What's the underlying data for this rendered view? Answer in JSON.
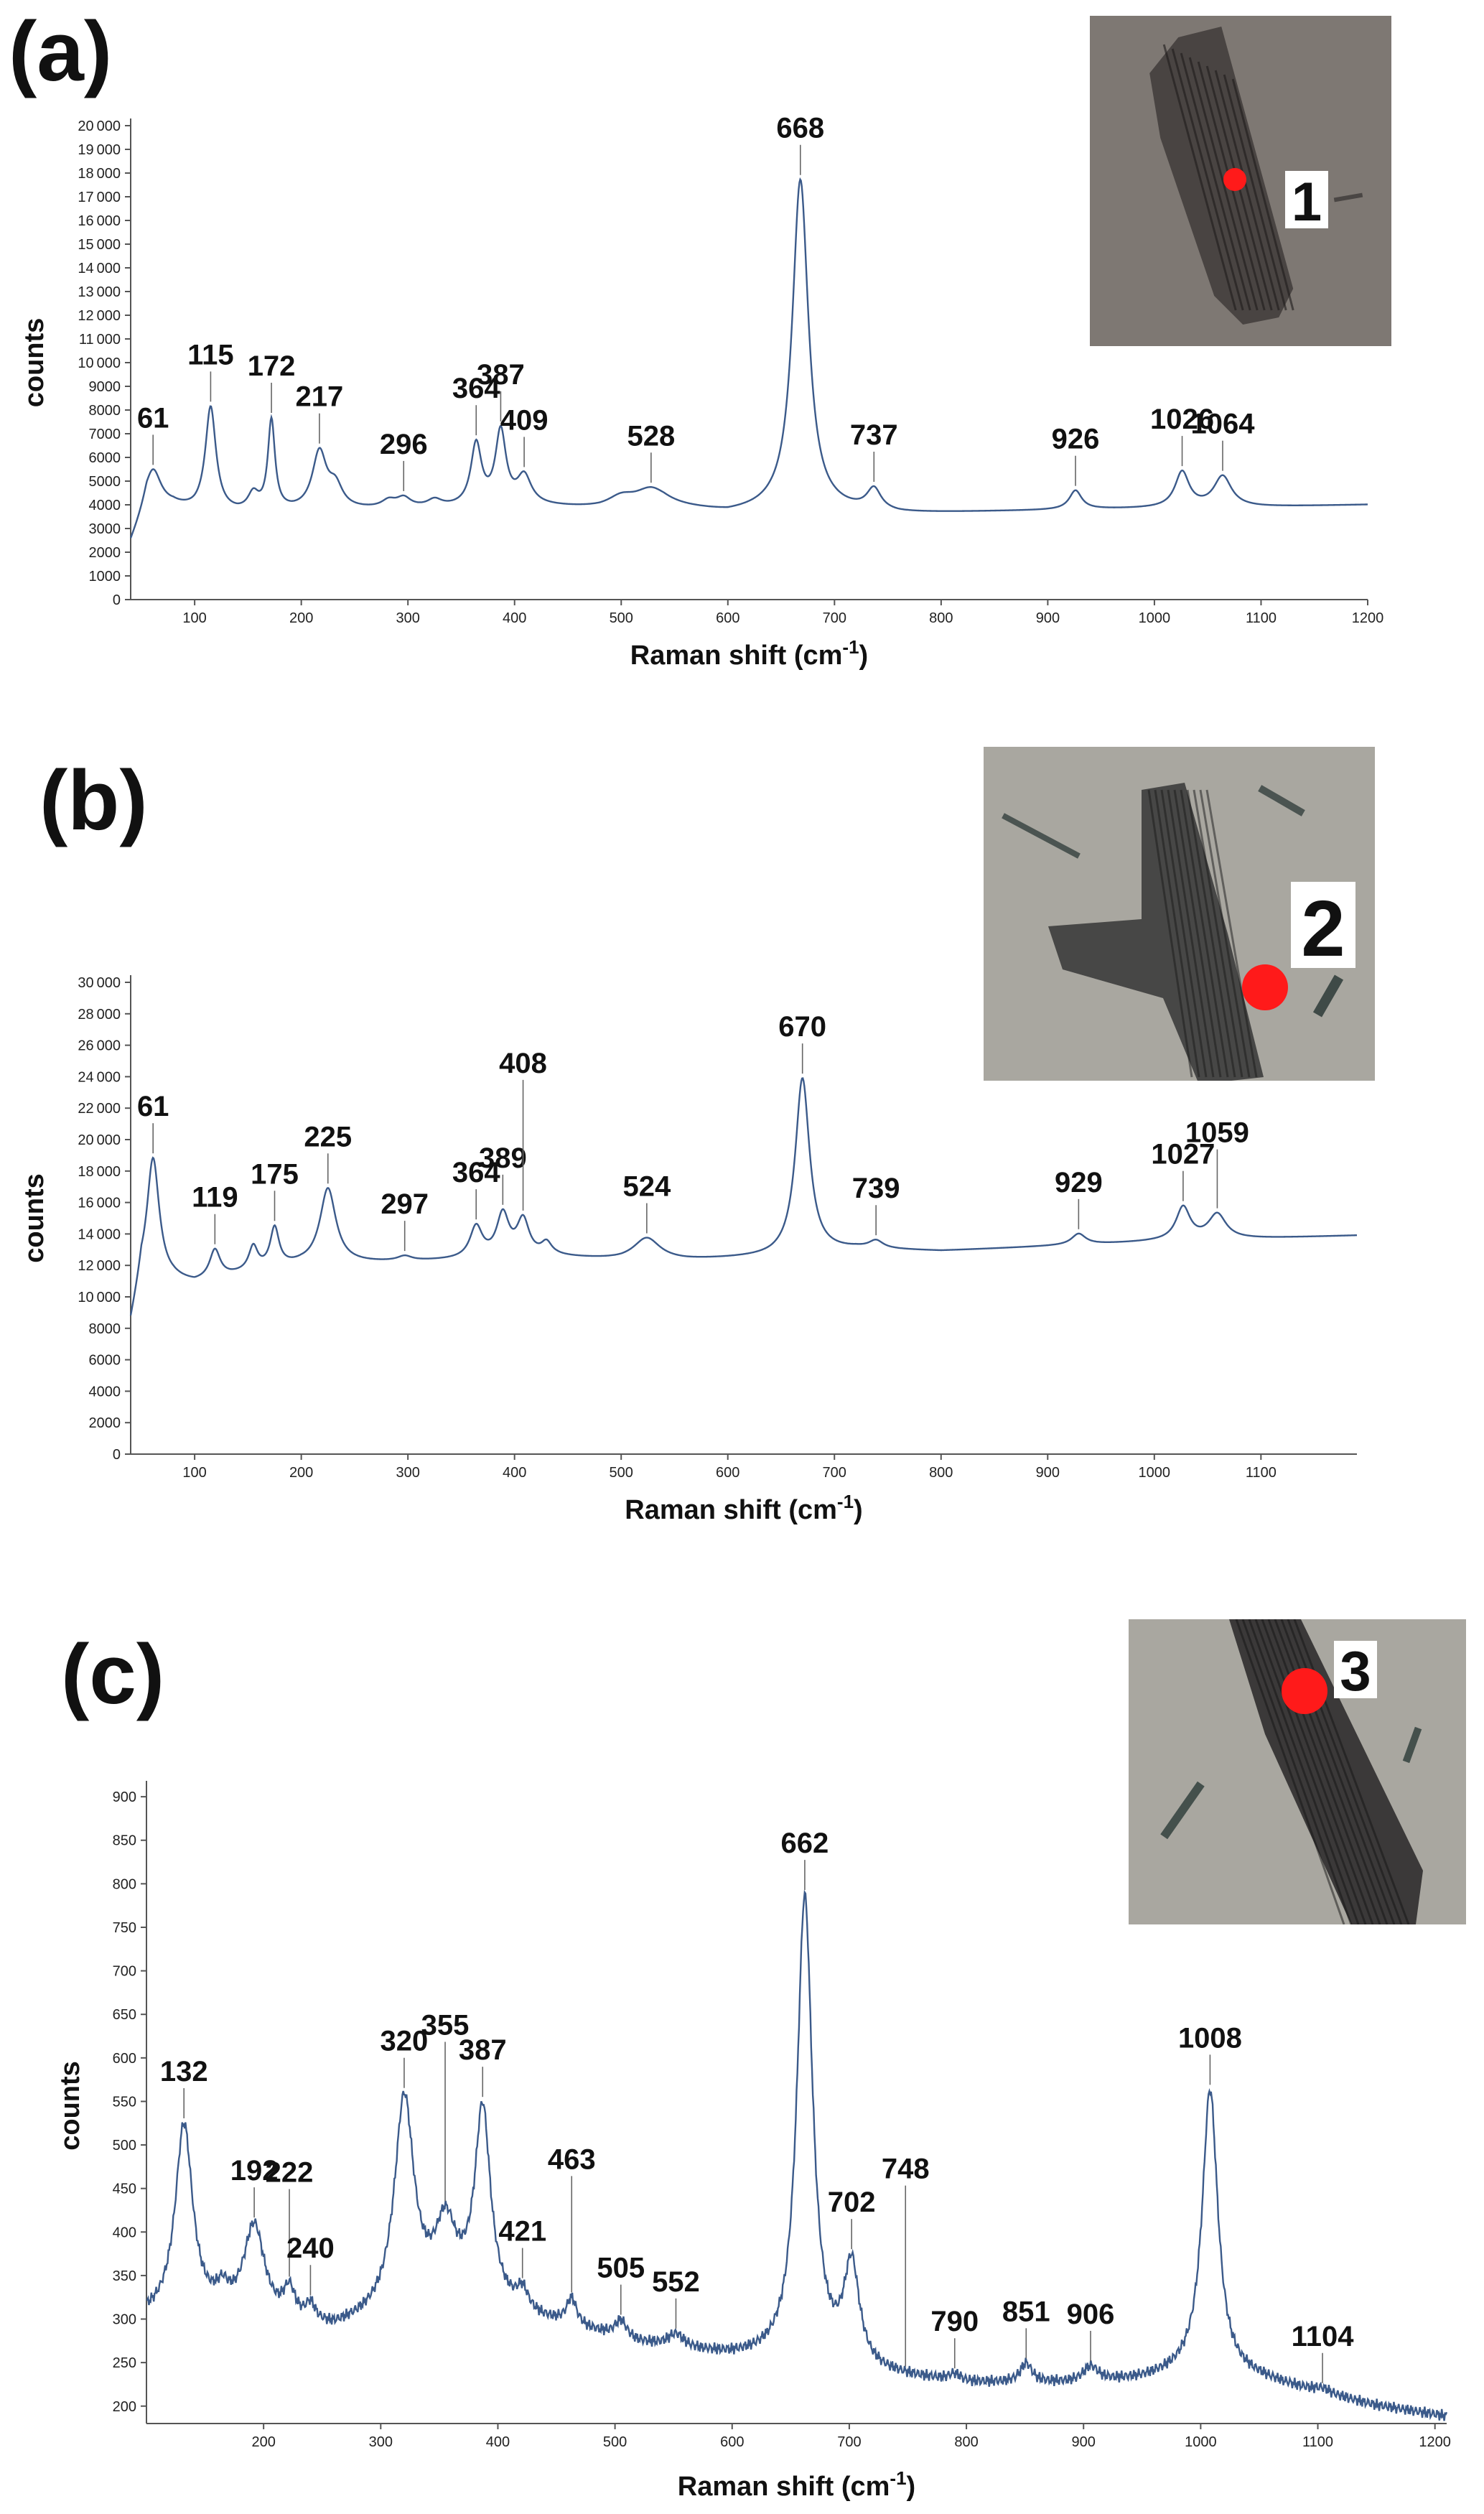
{
  "figure": {
    "line_color": "#3b5a8a",
    "spot_color": "#ff1a1a"
  },
  "chart_data": [
    {
      "type": "line",
      "panel_label": "(a)",
      "xlabel": "Raman shift (cm-1)",
      "xlabel_main": "Raman shift (cm",
      "xlabel_sup": "-1",
      "xlabel_end": ")",
      "ylabel": "counts",
      "xlim": [
        40,
        1200
      ],
      "ylim": [
        0,
        20000
      ],
      "x_ticks": [
        100,
        200,
        300,
        400,
        500,
        600,
        700,
        800,
        900,
        1000,
        1100,
        1200
      ],
      "y_ticks": [
        0,
        1000,
        2000,
        3000,
        4000,
        5000,
        6000,
        7000,
        8000,
        9000,
        10000,
        11000,
        12000,
        13000,
        14000,
        15000,
        16000,
        17000,
        18000,
        19000,
        20000
      ],
      "baseline": [
        [
          40,
          2300
        ],
        [
          55,
          3800
        ],
        [
          80,
          3900
        ],
        [
          100,
          3700
        ],
        [
          140,
          3600
        ],
        [
          200,
          3700
        ],
        [
          300,
          3800
        ],
        [
          420,
          3900
        ],
        [
          480,
          3800
        ],
        [
          540,
          3900
        ],
        [
          600,
          3600
        ],
        [
          640,
          3700
        ],
        [
          700,
          3700
        ],
        [
          760,
          3600
        ],
        [
          850,
          3700
        ],
        [
          950,
          3800
        ],
        [
          1100,
          3900
        ],
        [
          1200,
          4000
        ]
      ],
      "peaks": [
        [
          61,
          1600,
          9
        ],
        [
          115,
          4400,
          6
        ],
        [
          155,
          700,
          6
        ],
        [
          172,
          3800,
          4
        ],
        [
          217,
          2400,
          8
        ],
        [
          232,
          900,
          8
        ],
        [
          282,
          300,
          8
        ],
        [
          296,
          400,
          8
        ],
        [
          325,
          300,
          8
        ],
        [
          364,
          2600,
          6
        ],
        [
          387,
          3100,
          6
        ],
        [
          409,
          1200,
          8
        ],
        [
          500,
          400,
          15
        ],
        [
          528,
          700,
          18
        ],
        [
          668,
          14000,
          9
        ],
        [
          737,
          900,
          8
        ],
        [
          926,
          800,
          7
        ],
        [
          1026,
          1500,
          8
        ],
        [
          1064,
          1300,
          10
        ]
      ],
      "peak_labels": [
        {
          "x": 61,
          "text": "61"
        },
        {
          "x": 115,
          "text": "115"
        },
        {
          "x": 172,
          "text": "172"
        },
        {
          "x": 217,
          "text": "217"
        },
        {
          "x": 296,
          "text": "296"
        },
        {
          "x": 364,
          "text": "364"
        },
        {
          "x": 387,
          "text": "387"
        },
        {
          "x": 409,
          "text": "409"
        },
        {
          "x": 528,
          "text": "528"
        },
        {
          "x": 668,
          "text": "668"
        },
        {
          "x": 737,
          "text": "737"
        },
        {
          "x": 926,
          "text": "926"
        },
        {
          "x": 1026,
          "text": "1026"
        },
        {
          "x": 1064,
          "text": "1064"
        }
      ],
      "inset": {
        "spot_label": "1"
      }
    },
    {
      "type": "line",
      "panel_label": "(b)",
      "xlabel": "Raman shift (cm-1)",
      "xlabel_main": "Raman shift (cm",
      "xlabel_sup": "-1",
      "xlabel_end": ")",
      "ylabel": "counts",
      "xlim": [
        40,
        1190
      ],
      "ylim": [
        0,
        30000
      ],
      "x_ticks": [
        100,
        200,
        300,
        400,
        500,
        600,
        700,
        800,
        900,
        1000,
        1100
      ],
      "y_ticks": [
        0,
        2000,
        4000,
        6000,
        8000,
        10000,
        12000,
        14000,
        16000,
        18000,
        20000,
        22000,
        24000,
        26000,
        28000,
        30000
      ],
      "baseline": [
        [
          40,
          8000
        ],
        [
          50,
          11000
        ],
        [
          80,
          11000
        ],
        [
          100,
          10800
        ],
        [
          150,
          11500
        ],
        [
          200,
          12000
        ],
        [
          300,
          12200
        ],
        [
          440,
          12500
        ],
        [
          500,
          12300
        ],
        [
          560,
          12300
        ],
        [
          640,
          12500
        ],
        [
          720,
          13000
        ],
        [
          800,
          12900
        ],
        [
          900,
          13200
        ],
        [
          1000,
          13500
        ],
        [
          1190,
          13900
        ]
      ],
      "peaks": [
        [
          61,
          7800,
          7
        ],
        [
          119,
          1800,
          6
        ],
        [
          155,
          1500,
          5
        ],
        [
          175,
          2500,
          5
        ],
        [
          225,
          4800,
          9
        ],
        [
          297,
          300,
          8
        ],
        [
          364,
          2000,
          7
        ],
        [
          389,
          2700,
          7
        ],
        [
          408,
          2300,
          7
        ],
        [
          430,
          800,
          6
        ],
        [
          524,
          1400,
          15
        ],
        [
          670,
          11200,
          8
        ],
        [
          739,
          500,
          8
        ],
        [
          929,
          700,
          8
        ],
        [
          1027,
          2100,
          8
        ],
        [
          1059,
          1600,
          10
        ]
      ],
      "peak_labels": [
        {
          "x": 61,
          "text": "61"
        },
        {
          "x": 119,
          "text": "119"
        },
        {
          "x": 175,
          "text": "175"
        },
        {
          "x": 225,
          "text": "225"
        },
        {
          "x": 297,
          "text": "297"
        },
        {
          "x": 364,
          "text": "364"
        },
        {
          "x": 389,
          "text": "389"
        },
        {
          "x": 408,
          "text": "408"
        },
        {
          "x": 524,
          "text": "524"
        },
        {
          "x": 670,
          "text": "670"
        },
        {
          "x": 739,
          "text": "739"
        },
        {
          "x": 929,
          "text": "929"
        },
        {
          "x": 1027,
          "text": "1027"
        },
        {
          "x": 1059,
          "text": "1059"
        }
      ],
      "inset": {
        "spot_label": "2"
      }
    },
    {
      "type": "line",
      "panel_label": "(c)",
      "xlabel": "Raman shift (cm-1)",
      "xlabel_main": "Raman shift (cm",
      "xlabel_sup": "-1",
      "xlabel_end": ")",
      "ylabel": "counts",
      "xlim": [
        100,
        1210
      ],
      "ylim": [
        180,
        910
      ],
      "x_ticks": [
        200,
        300,
        400,
        500,
        600,
        700,
        800,
        900,
        1000,
        1100,
        1200
      ],
      "y_ticks": [
        200,
        250,
        300,
        350,
        400,
        450,
        500,
        550,
        600,
        650,
        700,
        750,
        800,
        850,
        900
      ],
      "baseline": [
        [
          100,
          300
        ],
        [
          160,
          300
        ],
        [
          200,
          290
        ],
        [
          260,
          285
        ],
        [
          300,
          300
        ],
        [
          360,
          330
        ],
        [
          420,
          300
        ],
        [
          460,
          290
        ],
        [
          520,
          270
        ],
        [
          600,
          255
        ],
        [
          650,
          250
        ],
        [
          720,
          235
        ],
        [
          800,
          225
        ],
        [
          900,
          225
        ],
        [
          950,
          230
        ],
        [
          1000,
          240
        ],
        [
          1050,
          230
        ],
        [
          1100,
          215
        ],
        [
          1150,
          200
        ],
        [
          1210,
          188
        ]
      ],
      "peaks": [
        [
          132,
          220,
          9
        ],
        [
          165,
          20,
          6
        ],
        [
          192,
          110,
          11
        ],
        [
          222,
          35,
          6
        ],
        [
          240,
          20,
          5
        ],
        [
          320,
          240,
          10
        ],
        [
          355,
          70,
          10
        ],
        [
          387,
          220,
          8
        ],
        [
          421,
          25,
          6
        ],
        [
          463,
          30,
          5
        ],
        [
          505,
          20,
          6
        ],
        [
          552,
          15,
          8
        ],
        [
          662,
          535,
          8
        ],
        [
          702,
          115,
          8
        ],
        [
          790,
          8,
          6
        ],
        [
          851,
          22,
          6
        ],
        [
          906,
          18,
          8
        ],
        [
          1008,
          325,
          8
        ],
        [
          1104,
          5,
          8
        ]
      ],
      "peak_labels": [
        {
          "x": 132,
          "text": "132"
        },
        {
          "x": 192,
          "text": "192"
        },
        {
          "x": 222,
          "text": "222"
        },
        {
          "x": 240,
          "text": "240"
        },
        {
          "x": 320,
          "text": "320"
        },
        {
          "x": 355,
          "text": "355"
        },
        {
          "x": 387,
          "text": "387"
        },
        {
          "x": 421,
          "text": "421"
        },
        {
          "x": 463,
          "text": "463"
        },
        {
          "x": 505,
          "text": "505"
        },
        {
          "x": 552,
          "text": "552"
        },
        {
          "x": 662,
          "text": "662"
        },
        {
          "x": 702,
          "text": "702"
        },
        {
          "x": 748,
          "text": "748"
        },
        {
          "x": 790,
          "text": "790"
        },
        {
          "x": 851,
          "text": "851"
        },
        {
          "x": 906,
          "text": "906"
        },
        {
          "x": 1008,
          "text": "1008"
        },
        {
          "x": 1104,
          "text": "1104"
        }
      ],
      "inset": {
        "spot_label": "3"
      }
    }
  ]
}
